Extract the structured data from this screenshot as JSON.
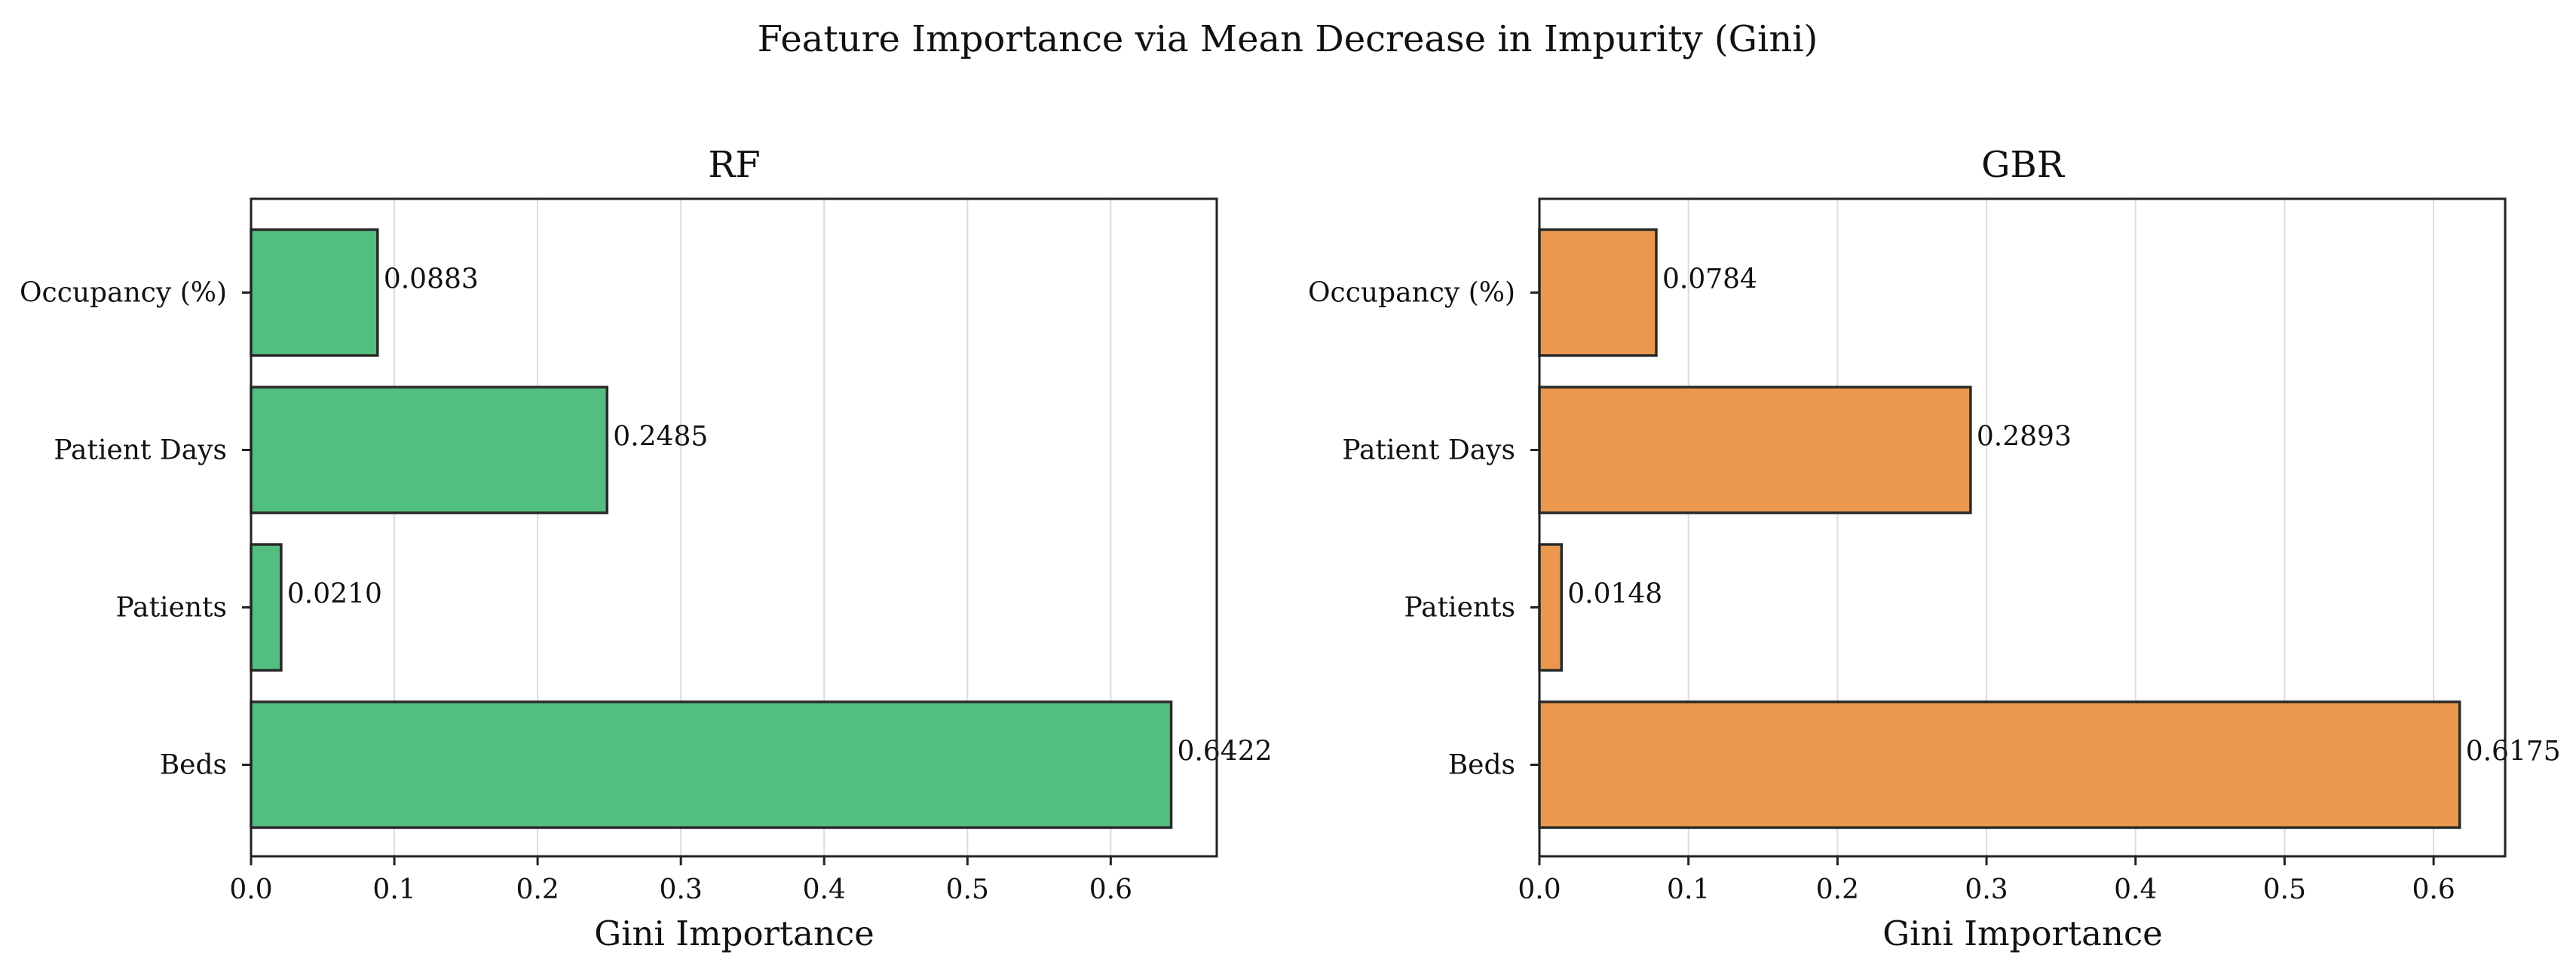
{
  "chart_data": {
    "suptitle": "Feature Importance via Mean Decrease in Impurity (Gini)",
    "panels": [
      {
        "type": "bar",
        "orientation": "horizontal",
        "title": "RF",
        "categories": [
          "Occupancy (%)",
          "Patient Days",
          "Patients",
          "Beds"
        ],
        "values": [
          0.0883,
          0.2485,
          0.021,
          0.6422
        ],
        "value_labels": [
          "0.0883",
          "0.2485",
          "0.0210",
          "0.6422"
        ],
        "xlabel": "Gini Importance",
        "ylabel": "",
        "xlim": [
          0,
          0.674
        ],
        "xticks": [
          0.0,
          0.1,
          0.2,
          0.3,
          0.4,
          0.5,
          0.6
        ],
        "xtick_labels": [
          "0.0",
          "0.1",
          "0.2",
          "0.3",
          "0.4",
          "0.5",
          "0.6"
        ],
        "bar_color": "#52be80",
        "grid": "vertical"
      },
      {
        "type": "bar",
        "orientation": "horizontal",
        "title": "GBR",
        "categories": [
          "Occupancy (%)",
          "Patient Days",
          "Patients",
          "Beds"
        ],
        "values": [
          0.0784,
          0.2893,
          0.0148,
          0.6175
        ],
        "value_labels": [
          "0.0784",
          "0.2893",
          "0.0148",
          "0.6175"
        ],
        "xlabel": "Gini Importance",
        "ylabel": "",
        "xlim": [
          0,
          0.648
        ],
        "xticks": [
          0.0,
          0.1,
          0.2,
          0.3,
          0.4,
          0.5,
          0.6
        ],
        "xtick_labels": [
          "0.0",
          "0.1",
          "0.2",
          "0.3",
          "0.4",
          "0.5",
          "0.6"
        ],
        "bar_color": "#eb984e",
        "grid": "vertical"
      }
    ]
  }
}
